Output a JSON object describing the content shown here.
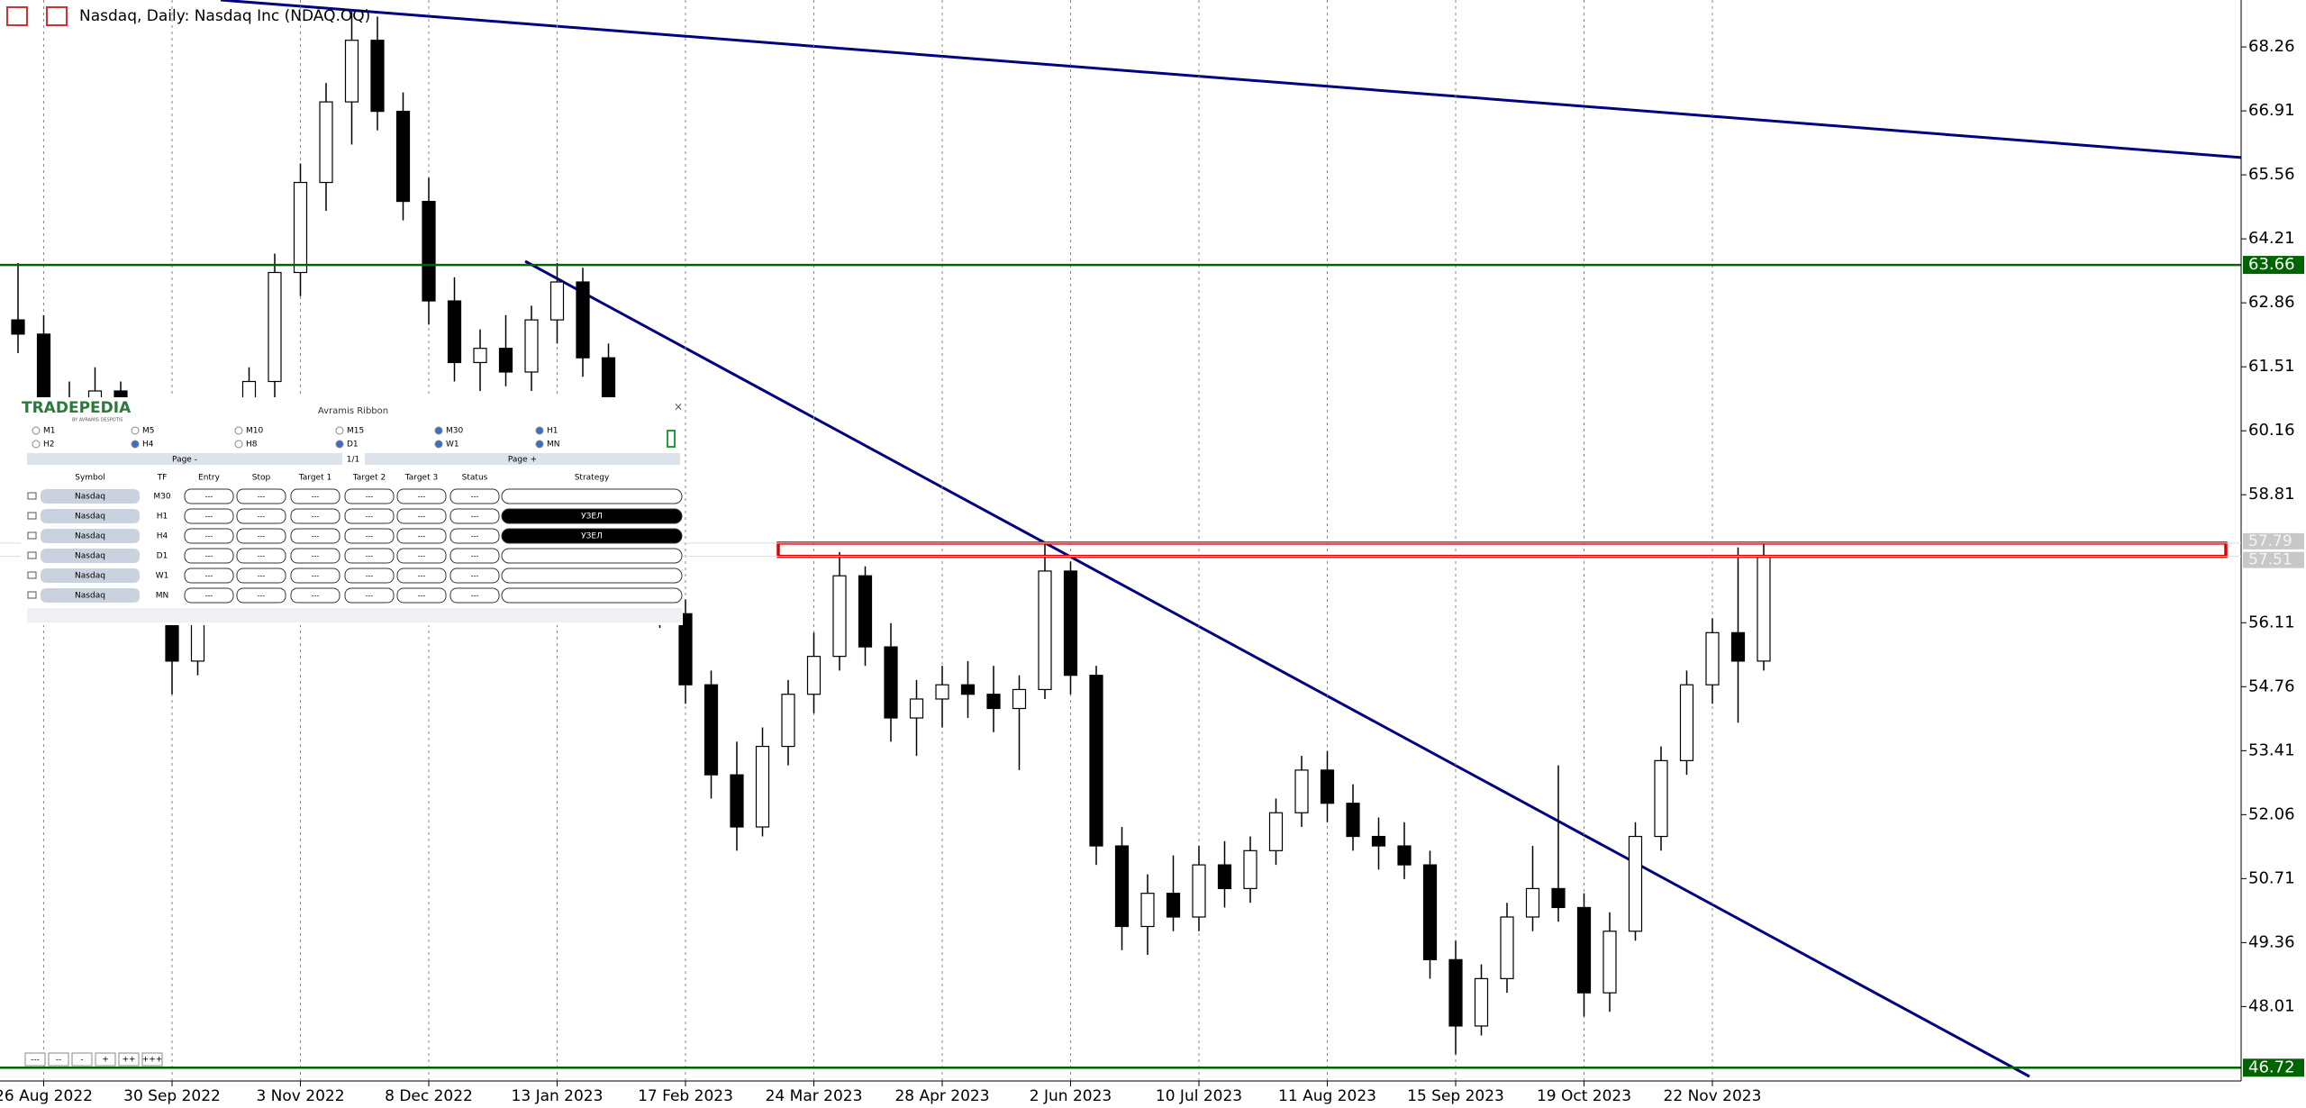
{
  "header": {
    "title": "Nasdaq, Daily:  Nasdaq Inc (NDAQ.OQ)"
  },
  "chart_data": {
    "type": "candlestick",
    "categories": [
      null,
      "26 Aug 2022",
      null,
      null,
      null,
      null,
      "30 Sep 2022",
      null,
      null,
      null,
      null,
      "3 Nov 2022",
      null,
      null,
      null,
      null,
      "8 Dec 2022",
      null,
      null,
      null,
      null,
      "13 Jan 2023",
      null,
      null,
      null,
      null,
      "17 Feb 2023",
      null,
      null,
      null,
      null,
      "24 Mar 2023",
      null,
      null,
      null,
      null,
      "28 Apr 2023",
      null,
      null,
      null,
      null,
      "2 Jun 2023",
      null,
      null,
      null,
      null,
      "10 Jul 2023",
      null,
      null,
      null,
      null,
      "11 Aug 2023",
      null,
      null,
      null,
      null,
      "15 Sep 2023",
      null,
      null,
      null,
      null,
      "19 Oct 2023",
      null,
      null,
      null,
      null,
      "22 Nov 2023",
      null,
      null
    ],
    "open": [
      62.5,
      62.2,
      60.8,
      60.1,
      61.0,
      58.6,
      56.8,
      55.3,
      56.9,
      57.9,
      61.2,
      63.5,
      65.4,
      67.1,
      68.4,
      66.9,
      65.0,
      62.9,
      61.6,
      61.9,
      61.4,
      62.5,
      63.3,
      61.7,
      59.9,
      57.8,
      56.3,
      54.8,
      52.9,
      51.8,
      53.5,
      54.6,
      55.4,
      57.1,
      55.6,
      54.1,
      54.5,
      54.8,
      54.6,
      54.3,
      54.7,
      57.2,
      55.0,
      51.4,
      49.7,
      50.4,
      49.9,
      51.0,
      50.5,
      51.3,
      52.1,
      53.0,
      52.3,
      51.6,
      51.4,
      51.0,
      49.0,
      47.6,
      48.6,
      49.9,
      50.5,
      50.1,
      48.3,
      49.6,
      51.6,
      53.2,
      54.8,
      55.9,
      55.3
    ],
    "high": [
      63.7,
      62.6,
      61.2,
      61.5,
      61.2,
      59.0,
      57.5,
      57.2,
      58.3,
      61.5,
      63.9,
      65.8,
      67.5,
      69.0,
      68.9,
      67.3,
      65.5,
      63.4,
      62.3,
      62.6,
      62.8,
      63.7,
      63.6,
      62.0,
      60.2,
      58.2,
      56.6,
      55.1,
      53.6,
      53.9,
      54.9,
      55.9,
      57.6,
      57.3,
      56.1,
      54.9,
      55.2,
      55.3,
      55.2,
      55.0,
      57.8,
      57.4,
      55.2,
      51.8,
      50.8,
      51.2,
      51.4,
      51.5,
      51.6,
      52.4,
      53.3,
      53.4,
      52.7,
      52.0,
      51.9,
      51.3,
      49.4,
      48.9,
      50.2,
      51.4,
      53.1,
      50.4,
      50.0,
      51.9,
      53.5,
      55.1,
      56.2,
      57.7,
      57.8
    ],
    "low": [
      61.8,
      60.5,
      59.8,
      59.9,
      58.2,
      56.4,
      54.6,
      55.0,
      56.2,
      57.6,
      60.8,
      63.0,
      64.8,
      66.2,
      66.5,
      64.6,
      62.4,
      61.2,
      61.0,
      61.1,
      61.0,
      62.0,
      61.3,
      59.5,
      57.4,
      56.0,
      54.4,
      52.4,
      51.3,
      51.6,
      53.1,
      54.2,
      55.1,
      55.2,
      53.6,
      53.3,
      53.9,
      54.1,
      53.8,
      53.0,
      54.5,
      54.6,
      51.0,
      49.2,
      49.1,
      49.6,
      49.6,
      50.1,
      50.2,
      51.0,
      51.8,
      51.9,
      51.3,
      50.9,
      50.7,
      48.6,
      47.0,
      47.4,
      48.3,
      49.6,
      49.8,
      47.8,
      47.9,
      49.4,
      51.3,
      52.9,
      54.4,
      54.0,
      55.1
    ],
    "close": [
      62.2,
      60.8,
      60.1,
      61.0,
      58.6,
      56.8,
      55.3,
      56.9,
      57.9,
      61.2,
      63.5,
      65.4,
      67.1,
      68.4,
      66.9,
      65.0,
      62.9,
      61.6,
      61.9,
      61.4,
      62.5,
      63.3,
      61.7,
      59.9,
      57.8,
      56.3,
      54.8,
      52.9,
      51.8,
      53.5,
      54.6,
      55.4,
      57.1,
      55.6,
      54.1,
      54.5,
      54.8,
      54.6,
      54.3,
      54.7,
      57.2,
      55.0,
      51.4,
      49.7,
      50.4,
      49.9,
      51.0,
      50.5,
      51.3,
      52.1,
      53.0,
      52.3,
      51.6,
      51.4,
      51.0,
      49.0,
      47.6,
      48.6,
      49.9,
      50.5,
      50.1,
      48.3,
      49.6,
      51.6,
      53.2,
      54.8,
      55.9,
      55.3,
      57.5
    ],
    "ylim": [
      46.44,
      69.25
    ],
    "yticks": [
      48.01,
      49.36,
      50.71,
      52.06,
      53.41,
      54.76,
      56.11,
      58.81,
      60.16,
      61.51,
      62.86,
      64.21,
      65.56,
      66.91,
      68.26
    ],
    "levels": [
      {
        "value": 63.66,
        "color": "#006400"
      },
      {
        "value": 46.72,
        "color": "#006400"
      }
    ],
    "zone": {
      "low": 57.51,
      "high": 57.79,
      "color": "#e00000"
    }
  },
  "panel": {
    "brand": "TRADEPEDIA",
    "brand_sub": "BY AVRAMIS DESPOTIS",
    "title": "Avramis Ribbon",
    "timeframes": [
      {
        "label": "M1",
        "checked": false
      },
      {
        "label": "M5",
        "checked": false
      },
      {
        "label": "M10",
        "checked": false
      },
      {
        "label": "M15",
        "checked": false
      },
      {
        "label": "M30",
        "checked": true
      },
      {
        "label": "H1",
        "checked": true
      },
      {
        "label": "H2",
        "checked": false
      },
      {
        "label": "H4",
        "checked": true
      },
      {
        "label": "H8",
        "checked": false
      },
      {
        "label": "D1",
        "checked": true
      },
      {
        "label": "W1",
        "checked": true
      },
      {
        "label": "MN",
        "checked": true
      }
    ],
    "page_prev": "Page -",
    "page_info": "1/1",
    "page_next": "Page +",
    "columns": [
      "Symbol",
      "TF",
      "Entry",
      "Stop",
      "Target 1",
      "Target 2",
      "Target 3",
      "Status",
      "Strategy"
    ],
    "rows": [
      {
        "symbol": "Nasdaq",
        "tf": "M30",
        "cells": [
          "---",
          "---",
          "---",
          "---",
          "---",
          "---"
        ]
      },
      {
        "symbol": "Nasdaq",
        "tf": "H1",
        "cells": [
          "---",
          "---",
          "---",
          "---",
          "---",
          "---"
        ],
        "strategy": "УЗЕЛ"
      },
      {
        "symbol": "Nasdaq",
        "tf": "H4",
        "cells": [
          "---",
          "---",
          "---",
          "---",
          "---",
          "---"
        ],
        "strategy": "УЗЕЛ"
      },
      {
        "symbol": "Nasdaq",
        "tf": "D1",
        "cells": [
          "---",
          "---",
          "---",
          "---",
          "---",
          "---"
        ]
      },
      {
        "symbol": "Nasdaq",
        "tf": "W1",
        "cells": [
          "---",
          "---",
          "---",
          "---",
          "---",
          "---"
        ]
      },
      {
        "symbol": "Nasdaq",
        "tf": "MN",
        "cells": [
          "---",
          "---",
          "---",
          "---",
          "---",
          "---"
        ]
      }
    ],
    "buttons": [
      "---",
      "--",
      "-",
      "+",
      "++",
      "+++"
    ]
  }
}
